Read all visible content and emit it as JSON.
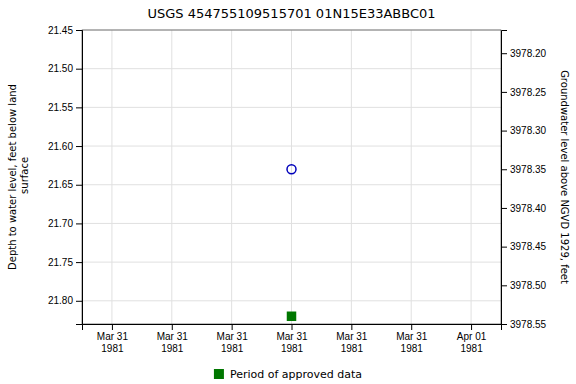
{
  "chart_data": {
    "type": "scatter",
    "title": "USGS 454755109515701 01N15E33ABBC01",
    "y_label": "Depth to water level, feet below land\n surface",
    "y2_label": "Groundwater level above NGVD 1929, feet",
    "categories": [
      "Mar 31\n1981",
      "Mar 31\n1981",
      "Mar 31\n1981",
      "Mar 31\n1981",
      "Mar 31\n1981",
      "Mar 31\n1981",
      "Apr 01\n1981"
    ],
    "series": [
      {
        "color": "#0000bb",
        "marker": "circle-open",
        "values": [
          null,
          null,
          null,
          21.63,
          null,
          null,
          null
        ]
      },
      {
        "name": "Period of approved data",
        "color": "#007700",
        "marker": "square",
        "values": [
          null,
          null,
          null,
          21.82,
          null,
          null,
          null
        ]
      }
    ],
    "ylim": [
      21.83,
      21.45
    ],
    "yticks": [
      21.45,
      {
        "value": 21.5,
        "label": "21.50"
      },
      21.55,
      {
        "value": 21.6,
        "label": "21.60"
      },
      21.65,
      {
        "value": 21.7,
        "label": "21.70"
      },
      21.75,
      {
        "value": 21.8,
        "label": "21.80"
      }
    ],
    "y2lim": [
      3978.55,
      3978.17
    ],
    "y2ticks": [
      3978.55,
      {
        "value": 3978.5,
        "label": "3978.50"
      },
      3978.45,
      {
        "value": 3978.4,
        "label": "3978.40"
      },
      3978.35,
      {
        "value": 3978.3,
        "label": "3978.30"
      },
      3978.25,
      {
        "value": 3978.2,
        "label": "3978.20"
      }
    ],
    "grid": true,
    "legend": "bottom"
  }
}
